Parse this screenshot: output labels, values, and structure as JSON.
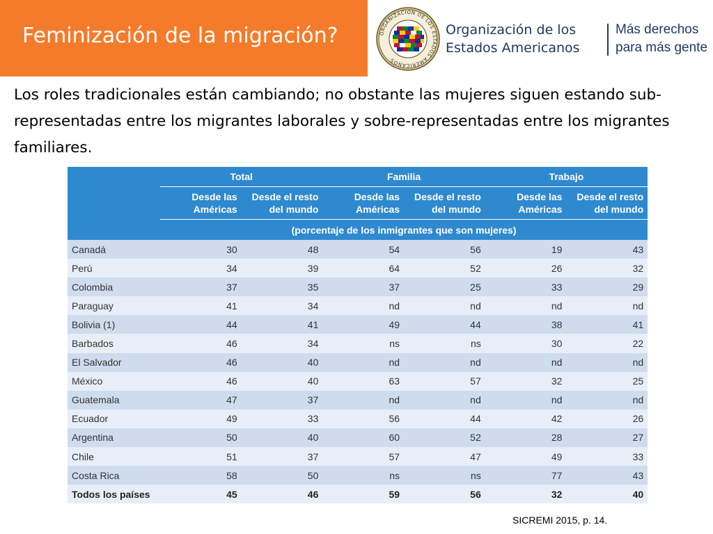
{
  "slide": {
    "title": "Feminización de la migración?",
    "lead_text": "Los roles tradicionales están cambiando; no obstante las mujeres siguen estando sub-representadas entre los migrantes laborales y sobre-representadas entre los migrantes familiares.",
    "source": "SICREMI 2015, p. 14."
  },
  "branding": {
    "org_line1": "Organización de los",
    "org_line2": "Estados Americanos",
    "motto_line1": "Más derechos",
    "motto_line2": "para más gente",
    "seal_text": "ORGANIZACION DE LOS ESTADOS AMERICANOS"
  },
  "colors": {
    "header": "#f47b2a",
    "table_header": "#2e89cf",
    "row_dark": "#cfdcee",
    "row_light": "#e8eef8",
    "brand_text": "#1f3864"
  },
  "table": {
    "groups": [
      "Total",
      "Familia",
      "Trabajo"
    ],
    "subheaders": [
      [
        "Desde las",
        "Américas"
      ],
      [
        "Desde el resto",
        "del mundo"
      ],
      [
        "Desde las",
        "Américas"
      ],
      [
        "Desde el resto",
        "del mundo"
      ],
      [
        "Desde las",
        "Américas"
      ],
      [
        "Desde el resto",
        "del mundo"
      ]
    ],
    "unit_note": "(porcentaje de los inmigrantes que son mujeres)",
    "rows": [
      {
        "country": "Canadá",
        "values": [
          "30",
          "48",
          "54",
          "56",
          "19",
          "43"
        ]
      },
      {
        "country": "Perú",
        "values": [
          "34",
          "39",
          "64",
          "52",
          "26",
          "32"
        ]
      },
      {
        "country": "Colombia",
        "values": [
          "37",
          "35",
          "37",
          "25",
          "33",
          "29"
        ]
      },
      {
        "country": "Paraguay",
        "values": [
          "41",
          "34",
          "nd",
          "nd",
          "nd",
          "nd"
        ]
      },
      {
        "country": "Bolivia (1)",
        "values": [
          "44",
          "41",
          "49",
          "44",
          "38",
          "41"
        ]
      },
      {
        "country": "Barbados",
        "values": [
          "46",
          "34",
          "ns",
          "ns",
          "30",
          "22"
        ]
      },
      {
        "country": "El Salvador",
        "values": [
          "46",
          "40",
          "nd",
          "nd",
          "nd",
          "nd"
        ]
      },
      {
        "country": "México",
        "values": [
          "46",
          "40",
          "63",
          "57",
          "32",
          "25"
        ]
      },
      {
        "country": "Guatemala",
        "values": [
          "47",
          "37",
          "nd",
          "nd",
          "nd",
          "nd"
        ]
      },
      {
        "country": "Ecuador",
        "values": [
          "49",
          "33",
          "56",
          "44",
          "42",
          "26"
        ]
      },
      {
        "country": "Argentina",
        "values": [
          "50",
          "40",
          "60",
          "52",
          "28",
          "27"
        ]
      },
      {
        "country": "Chile",
        "values": [
          "51",
          "37",
          "57",
          "47",
          "49",
          "33"
        ]
      },
      {
        "country": "Costa Rica",
        "values": [
          "58",
          "50",
          "ns",
          "ns",
          "77",
          "43"
        ]
      }
    ],
    "total_row": {
      "country": "Todos los países",
      "values": [
        "45",
        "46",
        "59",
        "56",
        "32",
        "40"
      ]
    }
  }
}
